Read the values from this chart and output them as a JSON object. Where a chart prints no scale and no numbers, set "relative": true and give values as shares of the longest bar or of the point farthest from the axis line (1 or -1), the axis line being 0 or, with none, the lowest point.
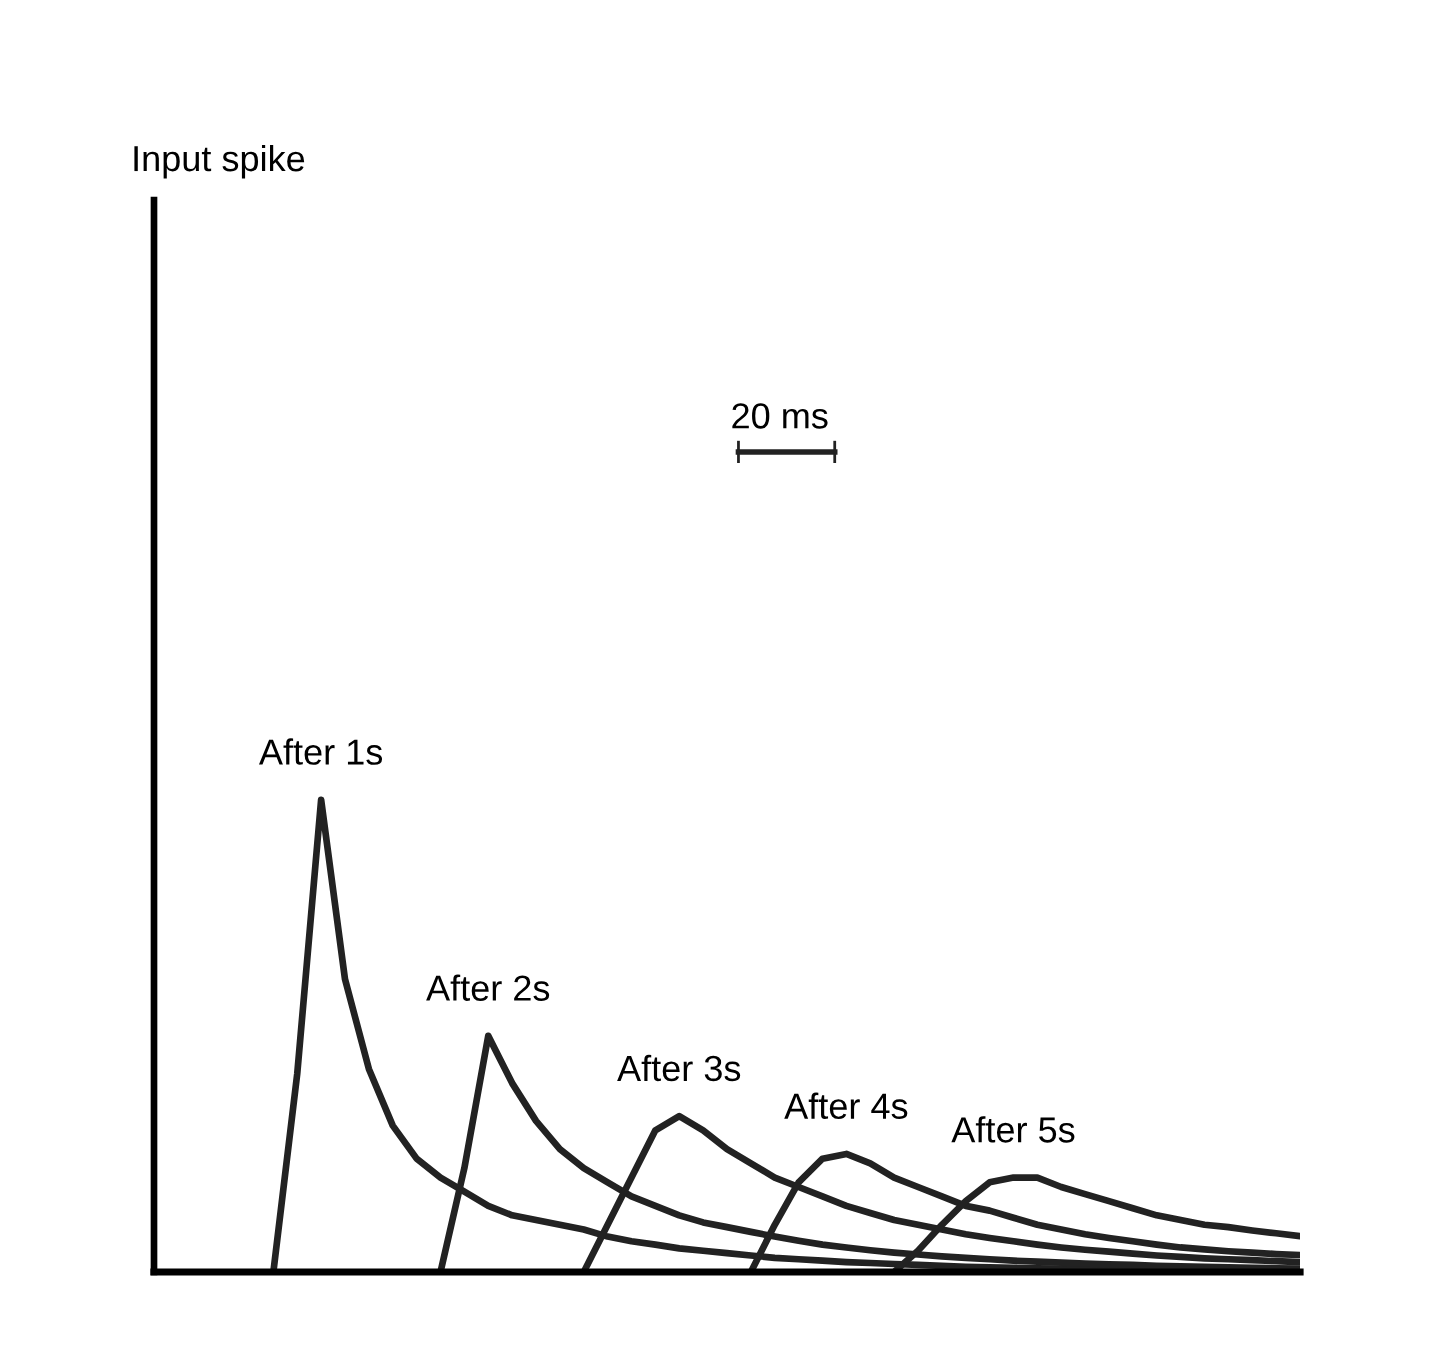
{
  "chart_data": {
    "type": "line",
    "relative": true,
    "legend": false,
    "marker": "none",
    "line_style": "solid",
    "categories": [
      null,
      null,
      null,
      null,
      null,
      null,
      null,
      null,
      null,
      null,
      null,
      null,
      null,
      null,
      null,
      null,
      null,
      null,
      null,
      null,
      null,
      null,
      null,
      null,
      null,
      null,
      null,
      null,
      null,
      null,
      null,
      null,
      null,
      null,
      null,
      null,
      null,
      null,
      null,
      null,
      null,
      null,
      null,
      null,
      null,
      null,
      null,
      null,
      null
    ],
    "series": [
      {
        "name": "After 1s",
        "color": "#222222",
        "values": [
          null,
          null,
          null,
          null,
          null,
          0,
          0.42,
          1.0,
          0.62,
          0.43,
          0.31,
          0.24,
          0.2,
          0.17,
          0.14,
          0.12,
          0.11,
          0.1,
          0.09,
          0.075,
          0.065,
          0.058,
          0.05,
          0.045,
          0.04,
          0.035,
          0.03,
          0.027,
          0.024,
          0.021,
          0.019,
          0.017,
          0.015,
          0.013,
          0.011,
          0.01,
          0.009,
          0.008,
          0.007,
          0.006,
          0.005,
          0.005,
          0.004,
          0.004,
          0.003,
          0.003,
          0.002,
          0.002,
          0.002
        ]
      },
      {
        "name": "After 2s",
        "color": "#222222",
        "values": [
          null,
          null,
          null,
          null,
          null,
          null,
          null,
          null,
          null,
          null,
          null,
          null,
          0,
          0.22,
          0.5,
          0.4,
          0.32,
          0.26,
          0.22,
          0.19,
          0.16,
          0.14,
          0.12,
          0.105,
          0.095,
          0.085,
          0.075,
          0.066,
          0.058,
          0.052,
          0.046,
          0.041,
          0.037,
          0.033,
          0.03,
          0.027,
          0.024,
          0.022,
          0.02,
          0.018,
          0.016,
          0.015,
          0.013,
          0.012,
          0.011,
          0.01,
          0.009,
          0.008,
          0.007
        ]
      },
      {
        "name": "After 3s",
        "color": "#222222",
        "values": [
          null,
          null,
          null,
          null,
          null,
          null,
          null,
          null,
          null,
          null,
          null,
          null,
          null,
          null,
          null,
          null,
          null,
          null,
          0,
          0.1,
          0.2,
          0.3,
          0.33,
          0.3,
          0.26,
          0.23,
          0.2,
          0.18,
          0.16,
          0.14,
          0.125,
          0.11,
          0.1,
          0.09,
          0.08,
          0.072,
          0.065,
          0.058,
          0.052,
          0.047,
          0.043,
          0.039,
          0.035,
          0.032,
          0.029,
          0.027,
          0.025,
          0.023,
          0.021
        ]
      },
      {
        "name": "After 4s",
        "color": "#222222",
        "values": [
          null,
          null,
          null,
          null,
          null,
          null,
          null,
          null,
          null,
          null,
          null,
          null,
          null,
          null,
          null,
          null,
          null,
          null,
          null,
          null,
          null,
          null,
          null,
          null,
          null,
          0,
          0.1,
          0.19,
          0.24,
          0.25,
          0.23,
          0.2,
          0.18,
          0.16,
          0.14,
          0.13,
          0.115,
          0.1,
          0.09,
          0.08,
          0.072,
          0.065,
          0.058,
          0.052,
          0.048,
          0.044,
          0.041,
          0.038,
          0.036
        ]
      },
      {
        "name": "After 5s",
        "color": "#222222",
        "values": [
          null,
          null,
          null,
          null,
          null,
          null,
          null,
          null,
          null,
          null,
          null,
          null,
          null,
          null,
          null,
          null,
          null,
          null,
          null,
          null,
          null,
          null,
          null,
          null,
          null,
          null,
          null,
          null,
          null,
          null,
          null,
          0,
          0.045,
          0.1,
          0.15,
          0.19,
          0.2,
          0.2,
          0.18,
          0.165,
          0.15,
          0.135,
          0.12,
          0.11,
          0.1,
          0.095,
          0.088,
          0.082,
          0.076
        ]
      }
    ],
    "annotations": [
      "20 ms",
      "Input spike"
    ]
  }
}
